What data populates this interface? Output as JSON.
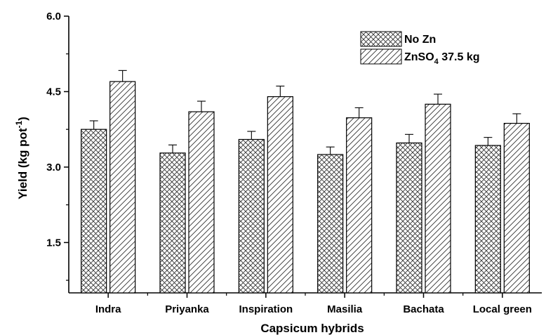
{
  "chart_data": {
    "type": "bar",
    "title": "",
    "xlabel": "Capsicum hybrids",
    "ylabel": "Yield (kg pot",
    "ylabel_sup": "-1",
    "ylabel_close": ")",
    "ylim": [
      0.5,
      6.0
    ],
    "yticks": [
      1.5,
      3.0,
      4.5,
      6.0
    ],
    "ytick_labels": [
      "1.5",
      "3.0",
      "4.5",
      "6.0"
    ],
    "categories": [
      "Indra",
      "Priyanka",
      "Inspiration",
      "Masilia",
      "Bachata",
      "Local green"
    ],
    "series": [
      {
        "name": "No Zn",
        "pattern": "crosshatch",
        "values": [
          3.75,
          3.28,
          3.55,
          3.25,
          3.48,
          3.43
        ],
        "errors": [
          0.17,
          0.16,
          0.16,
          0.15,
          0.17,
          0.16
        ]
      },
      {
        "name": "ZnSO4 37.5 kg",
        "pattern": "diagonal",
        "values": [
          4.7,
          4.1,
          4.4,
          3.98,
          4.25,
          3.87
        ],
        "errors": [
          0.22,
          0.21,
          0.21,
          0.2,
          0.2,
          0.19
        ]
      }
    ],
    "legend": {
      "position": "top-right",
      "entries": [
        {
          "label": "No Zn"
        },
        {
          "label_main": "ZnSO",
          "label_sub": "4",
          "label_rest": " 37.5 kg"
        }
      ]
    },
    "grid": false
  }
}
